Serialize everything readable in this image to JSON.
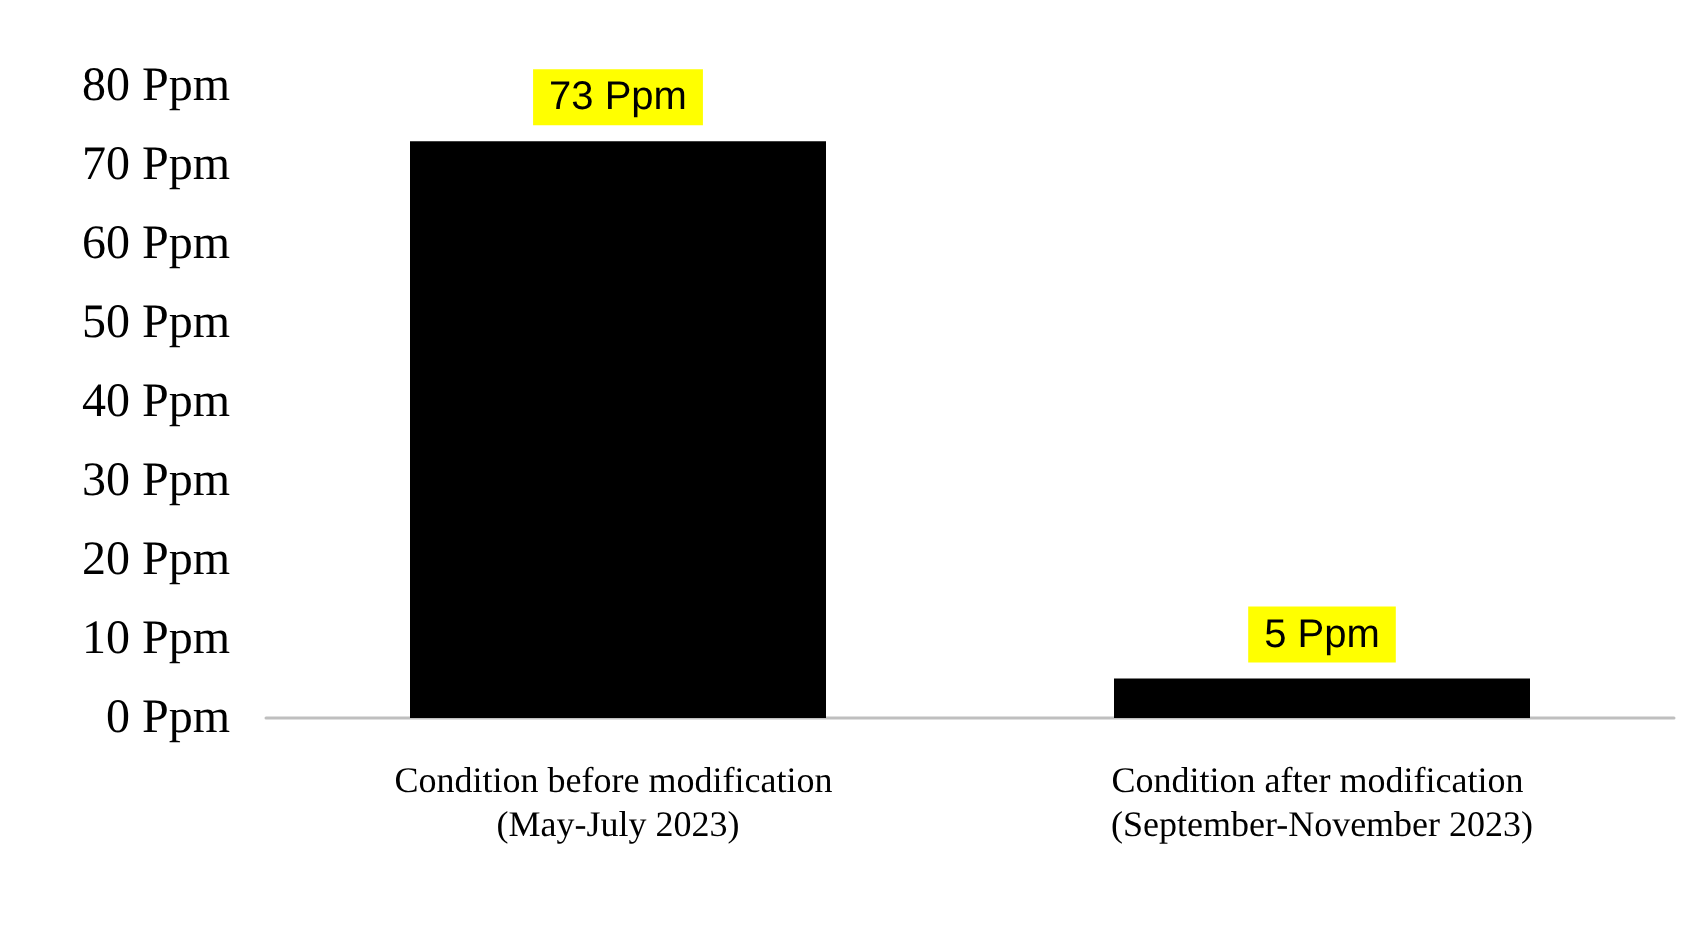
{
  "chart_data": {
    "type": "bar",
    "categories": [
      "Condition before modification (May-July 2023)",
      "Condition after modification (September-November 2023)"
    ],
    "values": [
      73,
      5
    ],
    "color": "#000000",
    "value_labels": [
      "73 Ppm",
      "5 Ppm"
    ],
    "ylim": [
      0,
      80
    ],
    "yticks": [
      {
        "value": 0,
        "label": "0 Ppm"
      },
      {
        "value": 10,
        "label": "10 Ppm"
      },
      {
        "value": 20,
        "label": "20 Ppm"
      },
      {
        "value": 30,
        "label": "30 Ppm"
      },
      {
        "value": 40,
        "label": "40 Ppm"
      },
      {
        "value": 50,
        "label": "50 Ppm"
      },
      {
        "value": 60,
        "label": "60 Ppm"
      },
      {
        "value": 70,
        "label": "70 Ppm"
      },
      {
        "value": 80,
        "label": "80 Ppm"
      }
    ],
    "grid": false
  }
}
